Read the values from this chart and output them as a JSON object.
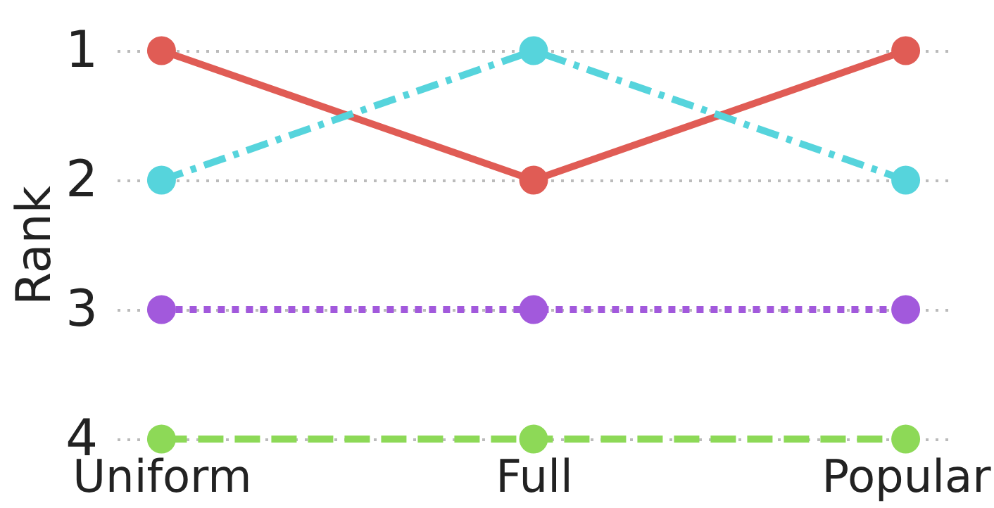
{
  "chart_data": {
    "type": "line",
    "ylabel": "Rank",
    "categories": [
      "Uniform",
      "Full",
      "Popular"
    ],
    "series": [
      {
        "color": "#e05c55",
        "values": [
          1,
          2,
          1
        ],
        "line_style": "solid"
      },
      {
        "color": "#56d4dc",
        "values": [
          2,
          1,
          2
        ],
        "line_style": "dashdot"
      },
      {
        "color": "#a259dc",
        "values": [
          3,
          3,
          3
        ],
        "line_style": "dotted"
      },
      {
        "color": "#8dd957",
        "values": [
          4,
          4,
          4
        ],
        "line_style": "dashed"
      }
    ],
    "ylim": [
      4,
      1
    ],
    "yticks": [
      1,
      2,
      3,
      4
    ],
    "grid": "y",
    "marker": "circle"
  }
}
